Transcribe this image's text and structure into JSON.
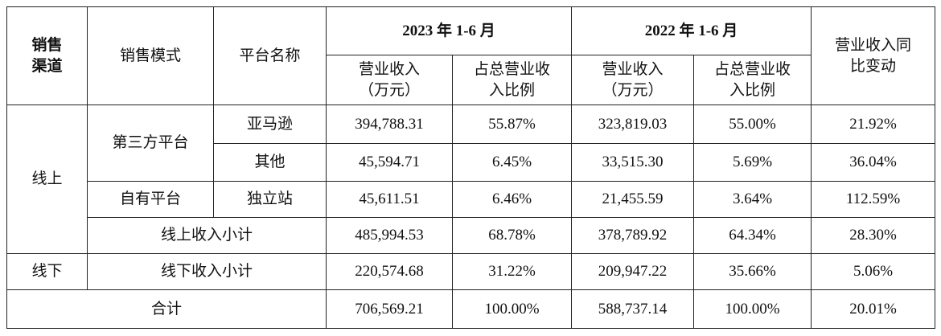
{
  "table": {
    "header": {
      "channel": [
        "销售",
        "渠道"
      ],
      "mode": "销售模式",
      "platform": "平台名称",
      "periods": [
        "2023 年 1-6 月",
        "2022 年 1-6 月"
      ],
      "revenue": [
        "营业收入",
        "（万元）"
      ],
      "share": [
        "占总营业收",
        "入比例"
      ],
      "yoy": [
        "营业收入同",
        "比变动"
      ]
    },
    "rows": [
      {
        "channel": "线上",
        "mode": "第三方平台",
        "platform": "亚马逊",
        "values": [
          "394,788.31",
          "55.87%",
          "323,819.03",
          "55.00%",
          "21.92%"
        ]
      },
      {
        "platform": "其他",
        "values": [
          "45,594.71",
          "6.45%",
          "33,515.30",
          "5.69%",
          "36.04%"
        ]
      },
      {
        "mode": "自有平台",
        "platform": "独立站",
        "values": [
          "45,611.51",
          "6.46%",
          "21,455.59",
          "3.64%",
          "112.59%"
        ]
      },
      {
        "label": "线上收入小计",
        "values": [
          "485,994.53",
          "68.78%",
          "378,789.92",
          "64.34%",
          "28.30%"
        ]
      },
      {
        "channel": "线下",
        "label": "线下收入小计",
        "values": [
          "220,574.68",
          "31.22%",
          "209,947.22",
          "35.66%",
          "5.06%"
        ]
      },
      {
        "label": "合计",
        "values": [
          "706,569.21",
          "100.00%",
          "588,737.14",
          "100.00%",
          "20.01%"
        ]
      }
    ]
  }
}
